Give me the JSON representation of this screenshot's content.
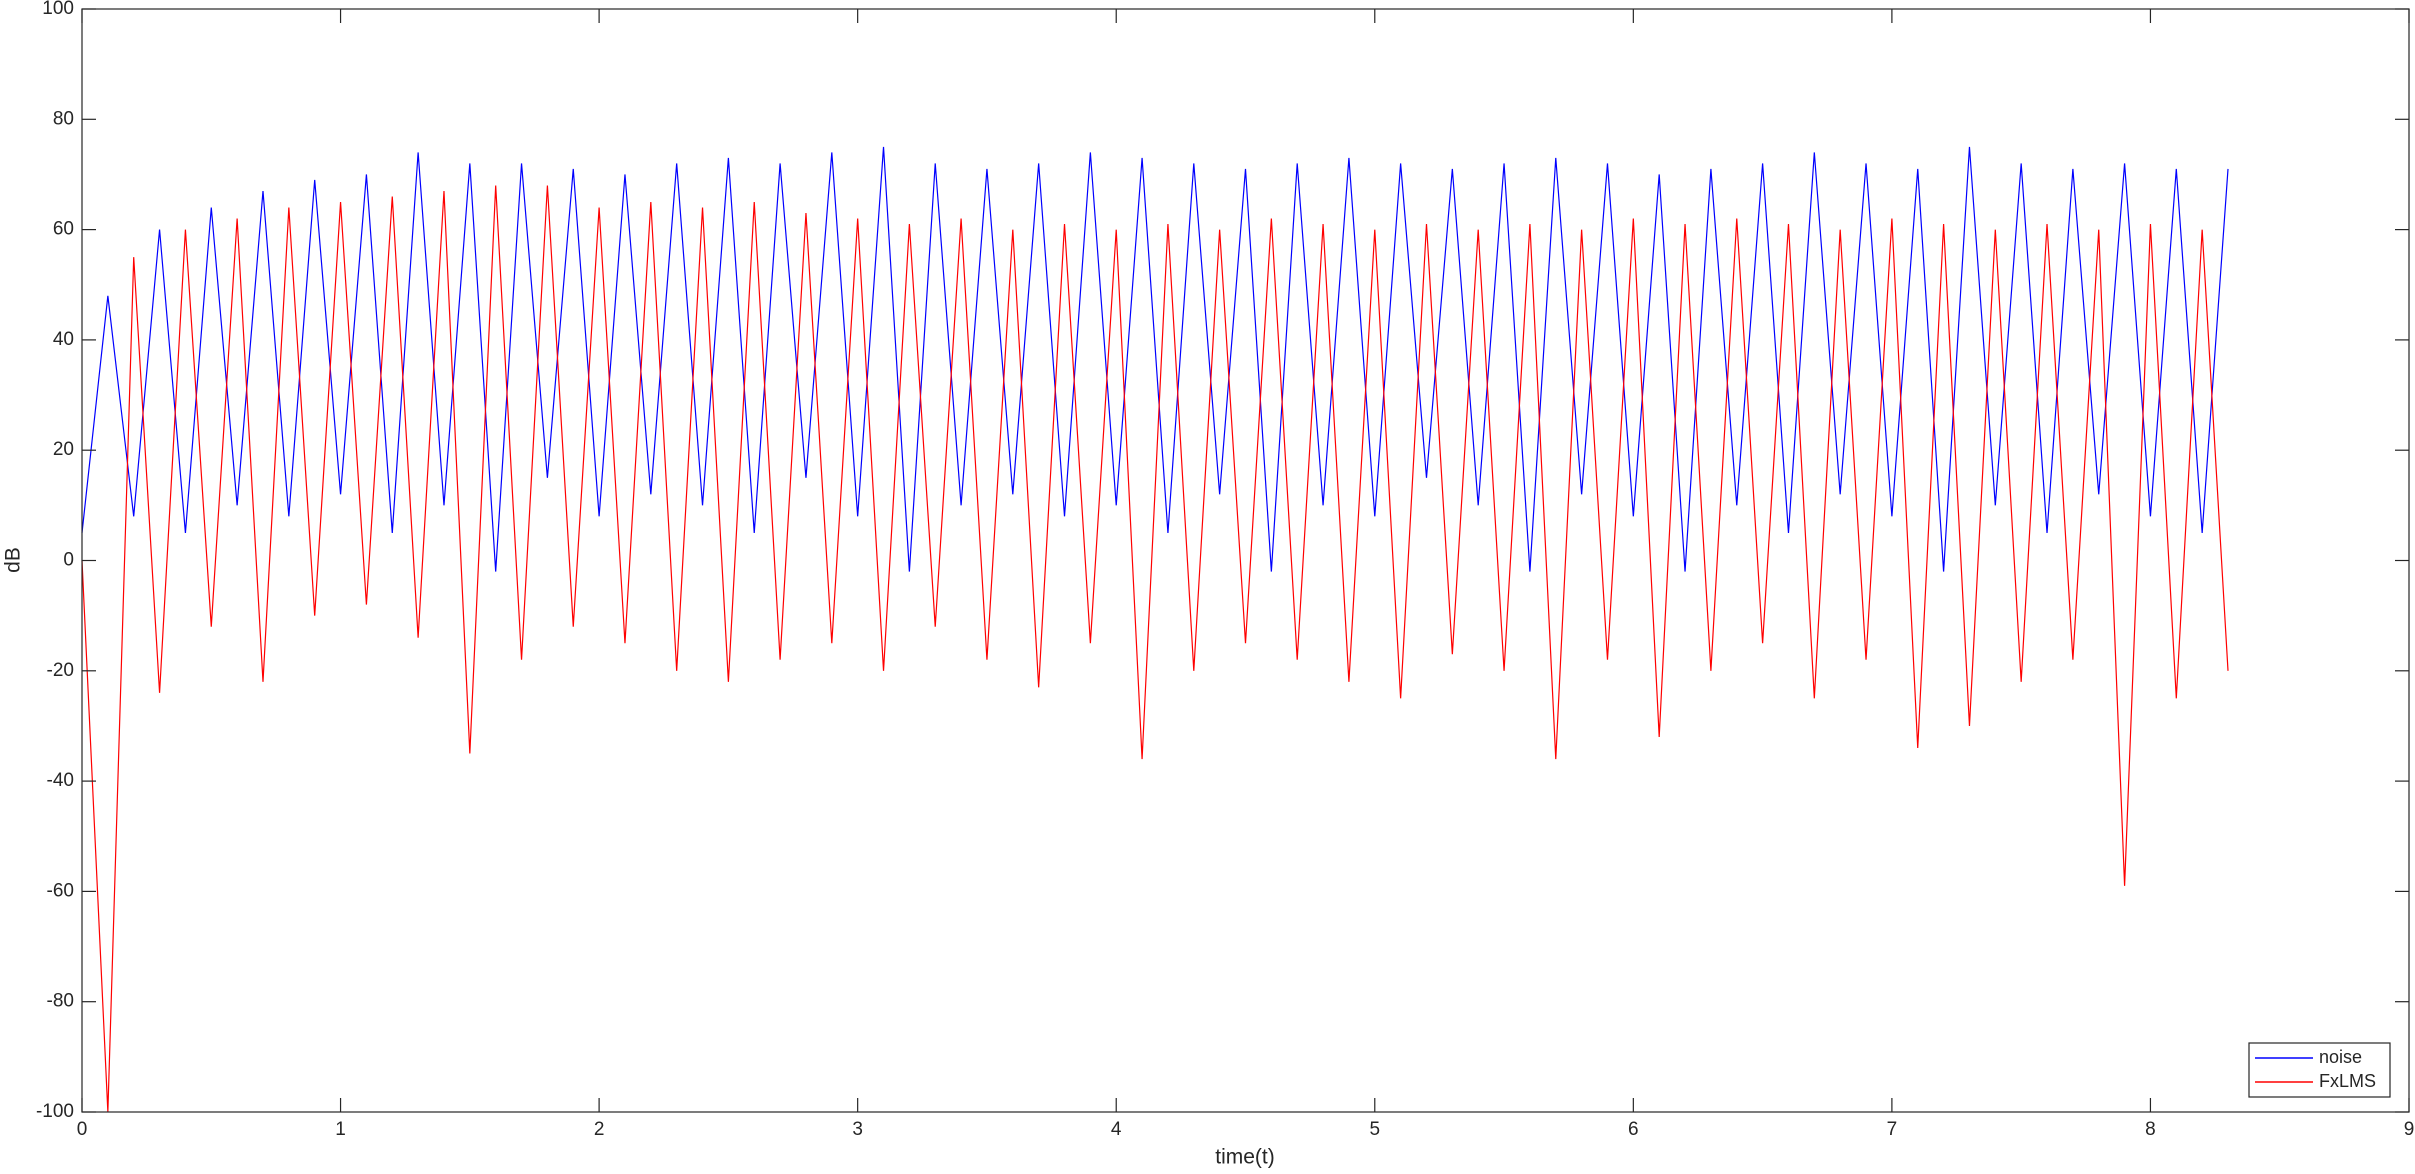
{
  "chart_data": {
    "type": "line",
    "xlabel": "time(t)",
    "ylabel": "dB",
    "x": [
      0,
      0.1,
      0.2,
      0.3,
      0.4,
      0.5,
      0.6,
      0.7,
      0.8,
      0.9,
      1,
      1.1,
      1.2,
      1.3,
      1.4,
      1.5,
      1.6,
      1.7,
      1.8,
      1.9,
      2,
      2.1,
      2.2,
      2.3,
      2.4,
      2.5,
      2.6,
      2.7,
      2.8,
      2.9,
      3,
      3.1,
      3.2,
      3.3,
      3.4,
      3.5,
      3.6,
      3.7,
      3.8,
      3.9,
      4,
      4.1,
      4.2,
      4.3,
      4.4,
      4.5,
      4.6,
      4.7,
      4.8,
      4.9,
      5,
      5.1,
      5.2,
      5.3,
      5.4,
      5.5,
      5.6,
      5.7,
      5.8,
      5.9,
      6,
      6.1,
      6.2,
      6.3,
      6.4,
      6.5,
      6.6,
      6.7,
      6.8,
      6.9,
      7,
      7.1,
      7.2,
      7.3,
      7.4,
      7.5,
      7.6,
      7.7,
      7.8,
      7.9,
      8,
      8.1,
      8.2,
      8.3
    ],
    "series": [
      {
        "name": "noise",
        "color": "#0000ff",
        "values": [
          5,
          48,
          8,
          60,
          5,
          64,
          10,
          67,
          8,
          69,
          12,
          70,
          5,
          74,
          10,
          72,
          -2,
          72,
          15,
          71,
          8,
          70,
          12,
          72,
          10,
          73,
          5,
          72,
          15,
          74,
          8,
          75,
          -2,
          72,
          10,
          71,
          12,
          72,
          8,
          74,
          10,
          73,
          5,
          72,
          12,
          71,
          -2,
          72,
          10,
          73,
          8,
          72,
          15,
          71,
          10,
          72,
          -2,
          73,
          12,
          72,
          8,
          70,
          -2,
          71,
          10,
          72,
          5,
          74,
          12,
          72,
          8,
          71,
          -2,
          75,
          10,
          72,
          5,
          71,
          12,
          72,
          8,
          71,
          5,
          71
        ]
      },
      {
        "name": "FxLMS",
        "color": "#ff0000",
        "values": [
          0,
          -100,
          55,
          -24,
          60,
          -12,
          62,
          -22,
          64,
          -10,
          65,
          -8,
          66,
          -14,
          67,
          -35,
          68,
          -18,
          68,
          -12,
          64,
          -15,
          65,
          -20,
          64,
          -22,
          65,
          -18,
          63,
          -15,
          62,
          -20,
          61,
          -12,
          62,
          -18,
          60,
          -23,
          61,
          -15,
          60,
          -36,
          61,
          -20,
          60,
          -15,
          62,
          -18,
          61,
          -22,
          60,
          -25,
          61,
          -17,
          60,
          -20,
          61,
          -36,
          60,
          -18,
          62,
          -32,
          61,
          -20,
          62,
          -15,
          61,
          -25,
          60,
          -18,
          62,
          -34,
          61,
          -30,
          60,
          -22,
          61,
          -18,
          60,
          -59,
          61,
          -25,
          60,
          -20
        ]
      }
    ],
    "xlim": [
      0,
      9
    ],
    "xticks": [
      0,
      1,
      2,
      3,
      4,
      5,
      6,
      7,
      8,
      9
    ],
    "ylim": [
      -100,
      100
    ],
    "yticks": [
      -100,
      -80,
      -60,
      -40,
      -20,
      0,
      20,
      40,
      60,
      80,
      100
    ],
    "grid": false,
    "legend": "southeast"
  }
}
